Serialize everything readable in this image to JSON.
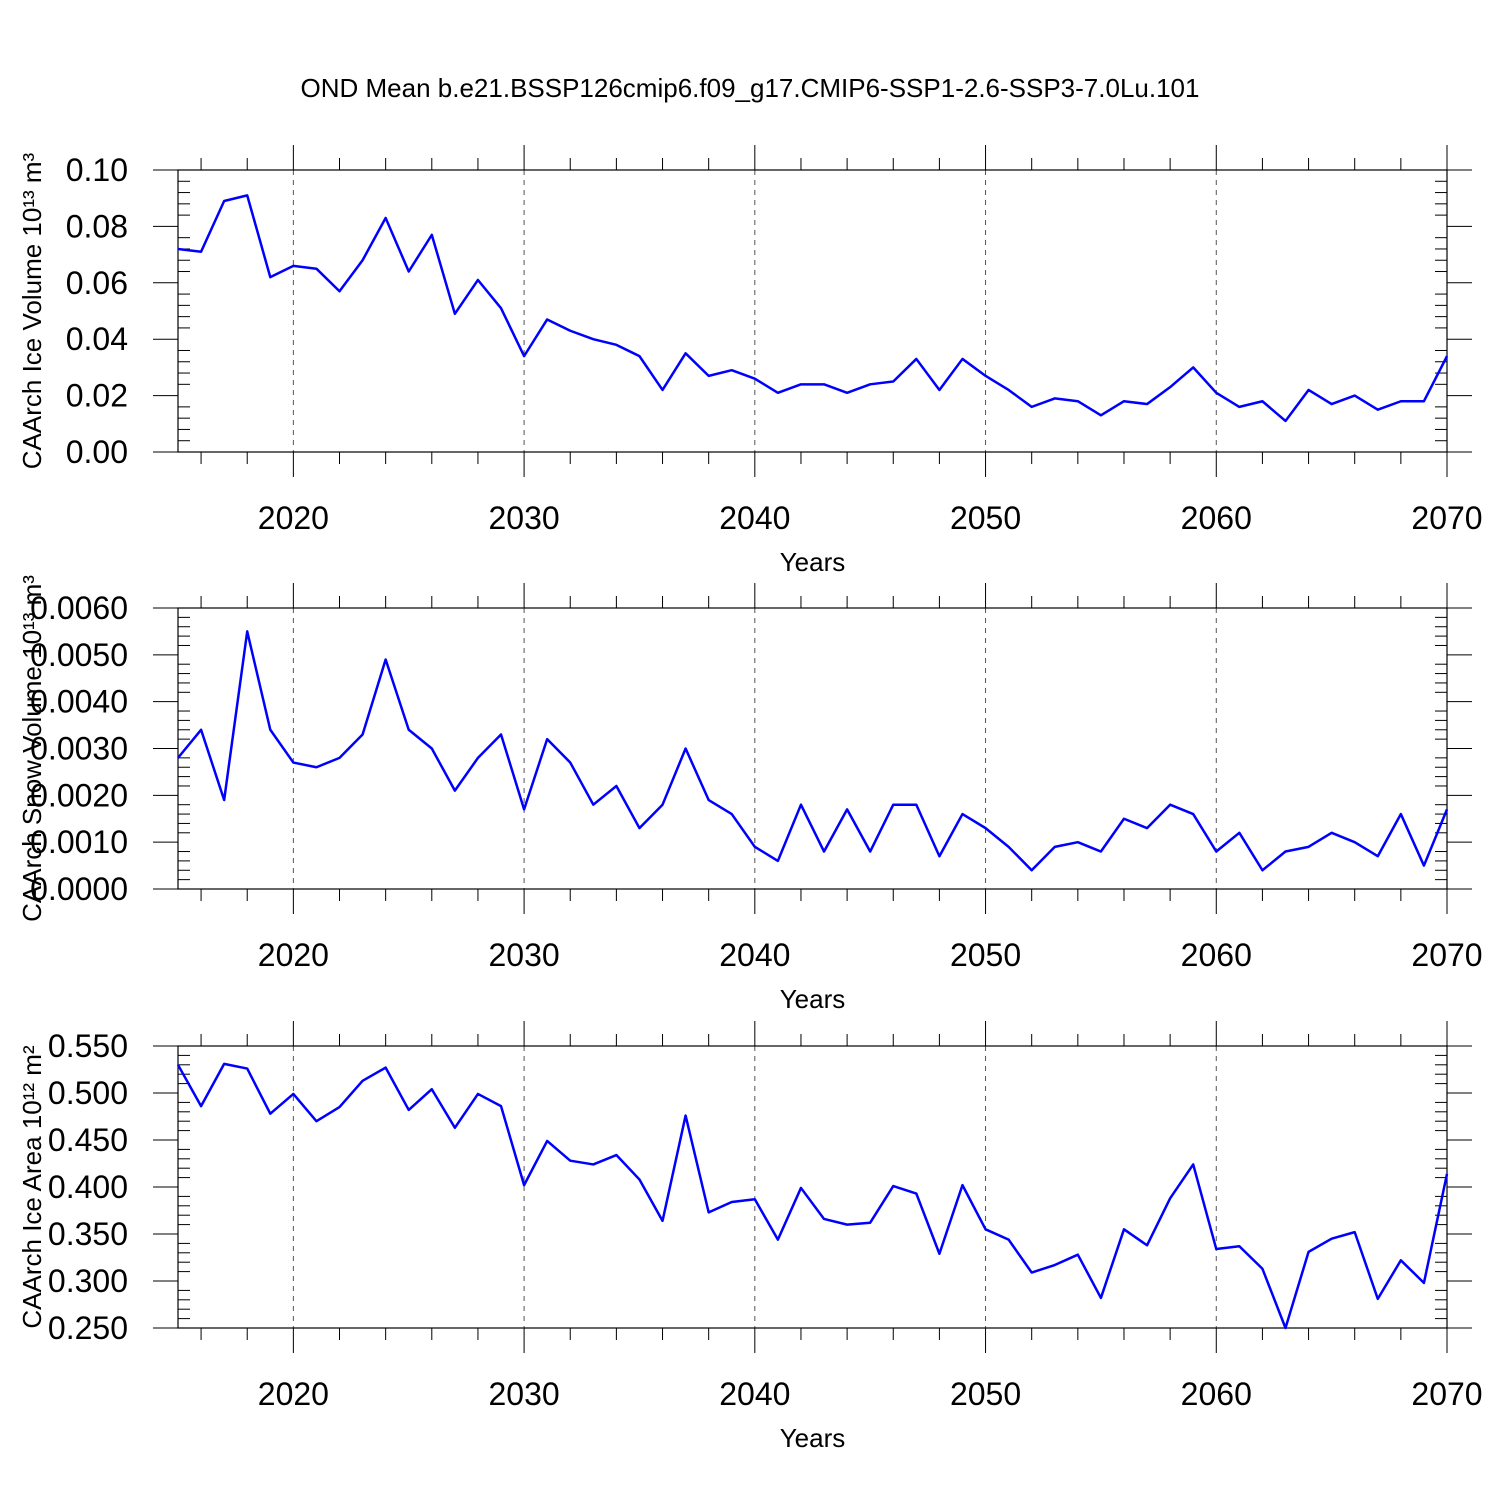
{
  "chart_data": [
    {
      "type": "line",
      "title": "OND Mean b.e21.BSSP126cmip6.f09_g17.CMIP6-SSP1-2.6-SSP3-7.0Lu.101",
      "ylabel": "CAArch Ice Volume 10¹³ m³",
      "xlabel": "Years",
      "grid": "x",
      "x": [
        2015,
        2016,
        2017,
        2018,
        2019,
        2020,
        2021,
        2022,
        2023,
        2024,
        2025,
        2026,
        2027,
        2028,
        2029,
        2030,
        2031,
        2032,
        2033,
        2034,
        2035,
        2036,
        2037,
        2038,
        2039,
        2040,
        2041,
        2042,
        2043,
        2044,
        2045,
        2046,
        2047,
        2048,
        2049,
        2050,
        2051,
        2052,
        2053,
        2054,
        2055,
        2056,
        2057,
        2058,
        2059,
        2060,
        2061,
        2062,
        2063,
        2064,
        2065,
        2066,
        2067,
        2068,
        2069,
        2070
      ],
      "series": [
        {
          "color": "#0000ff",
          "values": [
            0.072,
            0.071,
            0.089,
            0.091,
            0.062,
            0.066,
            0.065,
            0.057,
            0.068,
            0.083,
            0.064,
            0.077,
            0.049,
            0.061,
            0.051,
            0.034,
            0.047,
            0.043,
            0.04,
            0.038,
            0.034,
            0.022,
            0.035,
            0.027,
            0.029,
            0.026,
            0.021,
            0.024,
            0.024,
            0.021,
            0.024,
            0.025,
            0.033,
            0.022,
            0.033,
            0.027,
            0.022,
            0.016,
            0.019,
            0.018,
            0.013,
            0.018,
            0.017,
            0.023,
            0.03,
            0.021,
            0.016,
            0.018,
            0.011,
            0.022,
            0.017,
            0.02,
            0.015,
            0.018,
            0.018,
            0.034
          ]
        }
      ],
      "xlim": [
        2015,
        2070
      ],
      "xticks": [
        2020,
        2030,
        2040,
        2050,
        2060,
        2070
      ],
      "ylim": [
        0,
        0.1
      ],
      "yticks": [
        {
          "value": 0,
          "label": "0.00"
        },
        {
          "value": 0.02,
          "label": "0.02"
        },
        {
          "value": 0.04,
          "label": "0.04"
        },
        {
          "value": 0.06,
          "label": "0.06"
        },
        {
          "value": 0.08,
          "label": "0.08"
        },
        {
          "value": 0.1,
          "label": "0.10"
        }
      ]
    },
    {
      "type": "line",
      "ylabel": "CAArch Snow Volume 10¹³ m³",
      "xlabel": "Years",
      "grid": "x",
      "x": [
        2015,
        2016,
        2017,
        2018,
        2019,
        2020,
        2021,
        2022,
        2023,
        2024,
        2025,
        2026,
        2027,
        2028,
        2029,
        2030,
        2031,
        2032,
        2033,
        2034,
        2035,
        2036,
        2037,
        2038,
        2039,
        2040,
        2041,
        2042,
        2043,
        2044,
        2045,
        2046,
        2047,
        2048,
        2049,
        2050,
        2051,
        2052,
        2053,
        2054,
        2055,
        2056,
        2057,
        2058,
        2059,
        2060,
        2061,
        2062,
        2063,
        2064,
        2065,
        2066,
        2067,
        2068,
        2069,
        2070
      ],
      "series": [
        {
          "color": "#0000ff",
          "values": [
            0.0028,
            0.0034,
            0.0019,
            0.0055,
            0.0034,
            0.0027,
            0.0026,
            0.0028,
            0.0033,
            0.0049,
            0.0034,
            0.003,
            0.0021,
            0.0028,
            0.0033,
            0.0017,
            0.0032,
            0.0027,
            0.0018,
            0.0022,
            0.0013,
            0.0018,
            0.003,
            0.0019,
            0.0016,
            0.0009,
            0.0006,
            0.0018,
            0.0008,
            0.0017,
            0.0008,
            0.0018,
            0.0018,
            0.0007,
            0.0016,
            0.0013,
            0.0009,
            0.0004,
            0.0009,
            0.001,
            0.0008,
            0.0015,
            0.0013,
            0.0018,
            0.0016,
            0.0008,
            0.0012,
            0.0004,
            0.0008,
            0.0009,
            0.0012,
            0.001,
            0.0007,
            0.0016,
            0.0005,
            0.0017
          ]
        }
      ],
      "xlim": [
        2015,
        2070
      ],
      "xticks": [
        2020,
        2030,
        2040,
        2050,
        2060,
        2070
      ],
      "ylim": [
        0,
        0.006
      ],
      "yticks": [
        {
          "value": 0,
          "label": "0.0000"
        },
        {
          "value": 0.001,
          "label": "0.0010"
        },
        {
          "value": 0.002,
          "label": "0.0020"
        },
        {
          "value": 0.003,
          "label": "0.0030"
        },
        {
          "value": 0.004,
          "label": "0.0040"
        },
        {
          "value": 0.005,
          "label": "0.0050"
        },
        {
          "value": 0.006,
          "label": "0.0060"
        }
      ]
    },
    {
      "type": "line",
      "ylabel": "CAArch Ice Area 10¹² m²",
      "xlabel": "Years",
      "grid": "x",
      "x": [
        2015,
        2016,
        2017,
        2018,
        2019,
        2020,
        2021,
        2022,
        2023,
        2024,
        2025,
        2026,
        2027,
        2028,
        2029,
        2030,
        2031,
        2032,
        2033,
        2034,
        2035,
        2036,
        2037,
        2038,
        2039,
        2040,
        2041,
        2042,
        2043,
        2044,
        2045,
        2046,
        2047,
        2048,
        2049,
        2050,
        2051,
        2052,
        2053,
        2054,
        2055,
        2056,
        2057,
        2058,
        2059,
        2060,
        2061,
        2062,
        2063,
        2064,
        2065,
        2066,
        2067,
        2068,
        2069,
        2070
      ],
      "series": [
        {
          "color": "#0000ff",
          "values": [
            0.53,
            0.486,
            0.531,
            0.526,
            0.478,
            0.499,
            0.47,
            0.485,
            0.513,
            0.527,
            0.482,
            0.504,
            0.463,
            0.499,
            0.486,
            0.402,
            0.449,
            0.428,
            0.424,
            0.434,
            0.408,
            0.364,
            0.476,
            0.373,
            0.384,
            0.387,
            0.344,
            0.399,
            0.366,
            0.36,
            0.362,
            0.401,
            0.393,
            0.329,
            0.402,
            0.355,
            0.344,
            0.309,
            0.317,
            0.328,
            0.282,
            0.355,
            0.338,
            0.388,
            0.424,
            0.334,
            0.337,
            0.313,
            0.25,
            0.331,
            0.345,
            0.352,
            0.281,
            0.322,
            0.298,
            0.414
          ]
        }
      ],
      "xlim": [
        2015,
        2070
      ],
      "xticks": [
        2020,
        2030,
        2040,
        2050,
        2060,
        2070
      ],
      "ylim": [
        0.25,
        0.55
      ],
      "yticks": [
        {
          "value": 0.25,
          "label": "0.250"
        },
        {
          "value": 0.3,
          "label": "0.300"
        },
        {
          "value": 0.35,
          "label": "0.350"
        },
        {
          "value": 0.4,
          "label": "0.400"
        },
        {
          "value": 0.45,
          "label": "0.450"
        },
        {
          "value": 0.5,
          "label": "0.500"
        },
        {
          "value": 0.55,
          "label": "0.550"
        }
      ]
    }
  ]
}
